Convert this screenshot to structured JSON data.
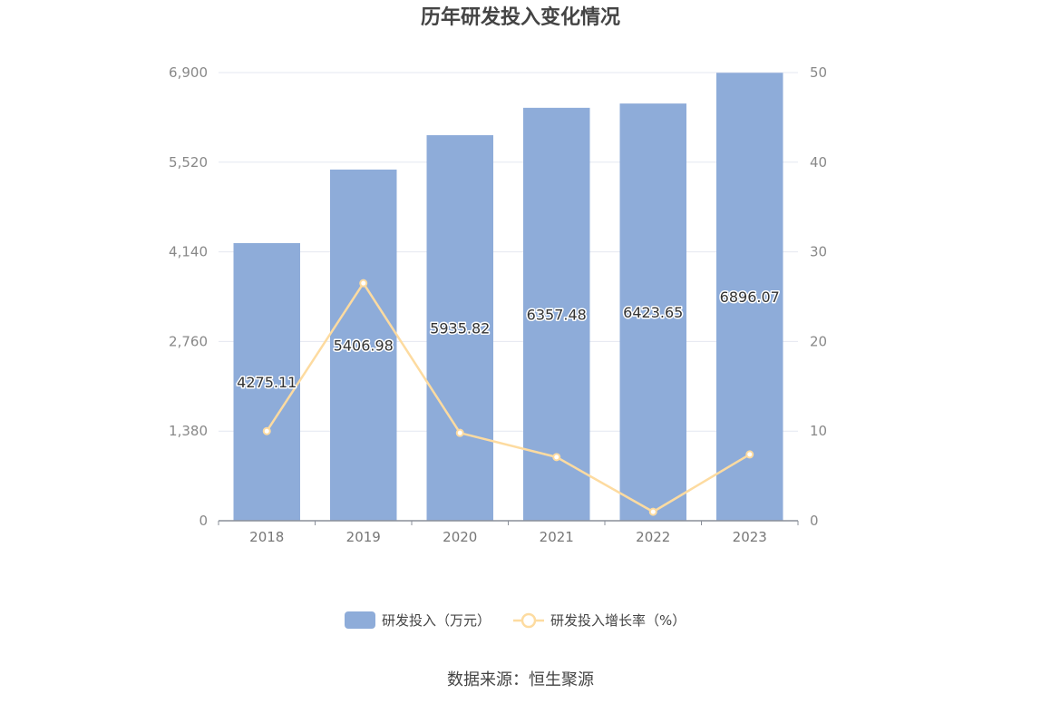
{
  "chart_data": {
    "type": "bar",
    "title": "历年研发投入变化情况",
    "categories": [
      "2018",
      "2019",
      "2020",
      "2021",
      "2022",
      "2023"
    ],
    "series": [
      {
        "name": "研发投入（万元）",
        "type": "bar",
        "axis": "left",
        "color": "#8eacd9",
        "values": [
          4275.11,
          5406.98,
          5935.82,
          6357.48,
          6423.65,
          6896.07
        ],
        "labels": [
          "4275.11",
          "5406.98",
          "5935.82",
          "6357.48",
          "6423.65",
          "6896.07"
        ]
      },
      {
        "name": "研发投入增长率（%）",
        "type": "line",
        "axis": "right",
        "color": "#fddba0",
        "values": [
          10.0,
          26.5,
          9.8,
          7.1,
          1.0,
          7.4
        ]
      }
    ],
    "y_left": {
      "min": 0,
      "max": 6900,
      "ticks": [
        "0",
        "1,380",
        "2,760",
        "4,140",
        "5,520",
        "6,900"
      ]
    },
    "y_right": {
      "min": 0,
      "max": 50,
      "ticks": [
        "0",
        "10",
        "20",
        "30",
        "40",
        "50"
      ]
    },
    "grid": true,
    "legend": "bottom"
  },
  "source_text": "数据来源：恒生聚源"
}
